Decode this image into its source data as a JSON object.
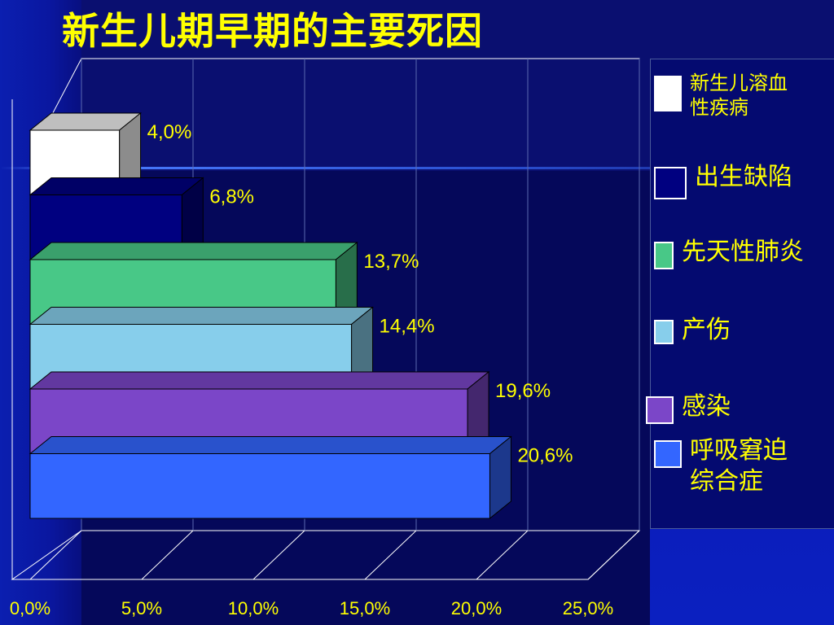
{
  "title": "新生儿期早期的主要死因",
  "chart_data": {
    "type": "bar",
    "orientation": "horizontal",
    "style": "3d",
    "categories": [
      "新生儿溶血性疾病",
      "出生缺陷",
      "先天性肺炎",
      "产伤",
      "感染",
      "呼吸窘迫综合症"
    ],
    "values": [
      4.0,
      6.8,
      13.7,
      14.4,
      19.6,
      20.6
    ],
    "data_labels": [
      "4,0%",
      "6,8%",
      "13,7%",
      "14,4%",
      "19,6%",
      "20,6%"
    ],
    "colors": [
      "#ffffff",
      "#000080",
      "#48c887",
      "#87ceeb",
      "#7b46c8",
      "#3366ff"
    ],
    "xlim": [
      0,
      25
    ],
    "x_ticks": [
      0,
      5,
      10,
      15,
      20,
      25
    ],
    "x_tick_labels": [
      "0,0%",
      "5,0%",
      "10,0%",
      "15,0%",
      "20,0%",
      "25,0%"
    ],
    "grid": true,
    "legend": {
      "position": "right",
      "items": [
        {
          "label": "新生儿溶血\n性疾病",
          "color": "#ffffff"
        },
        {
          "label": "出生缺陷",
          "color": "#000080"
        },
        {
          "label": "先天性肺炎",
          "color": "#48c887"
        },
        {
          "label": "产伤",
          "color": "#87ceeb"
        },
        {
          "label": "感染",
          "color": "#7b46c8"
        },
        {
          "label": "呼吸窘迫\n综合症",
          "color": "#3366ff"
        }
      ]
    }
  }
}
